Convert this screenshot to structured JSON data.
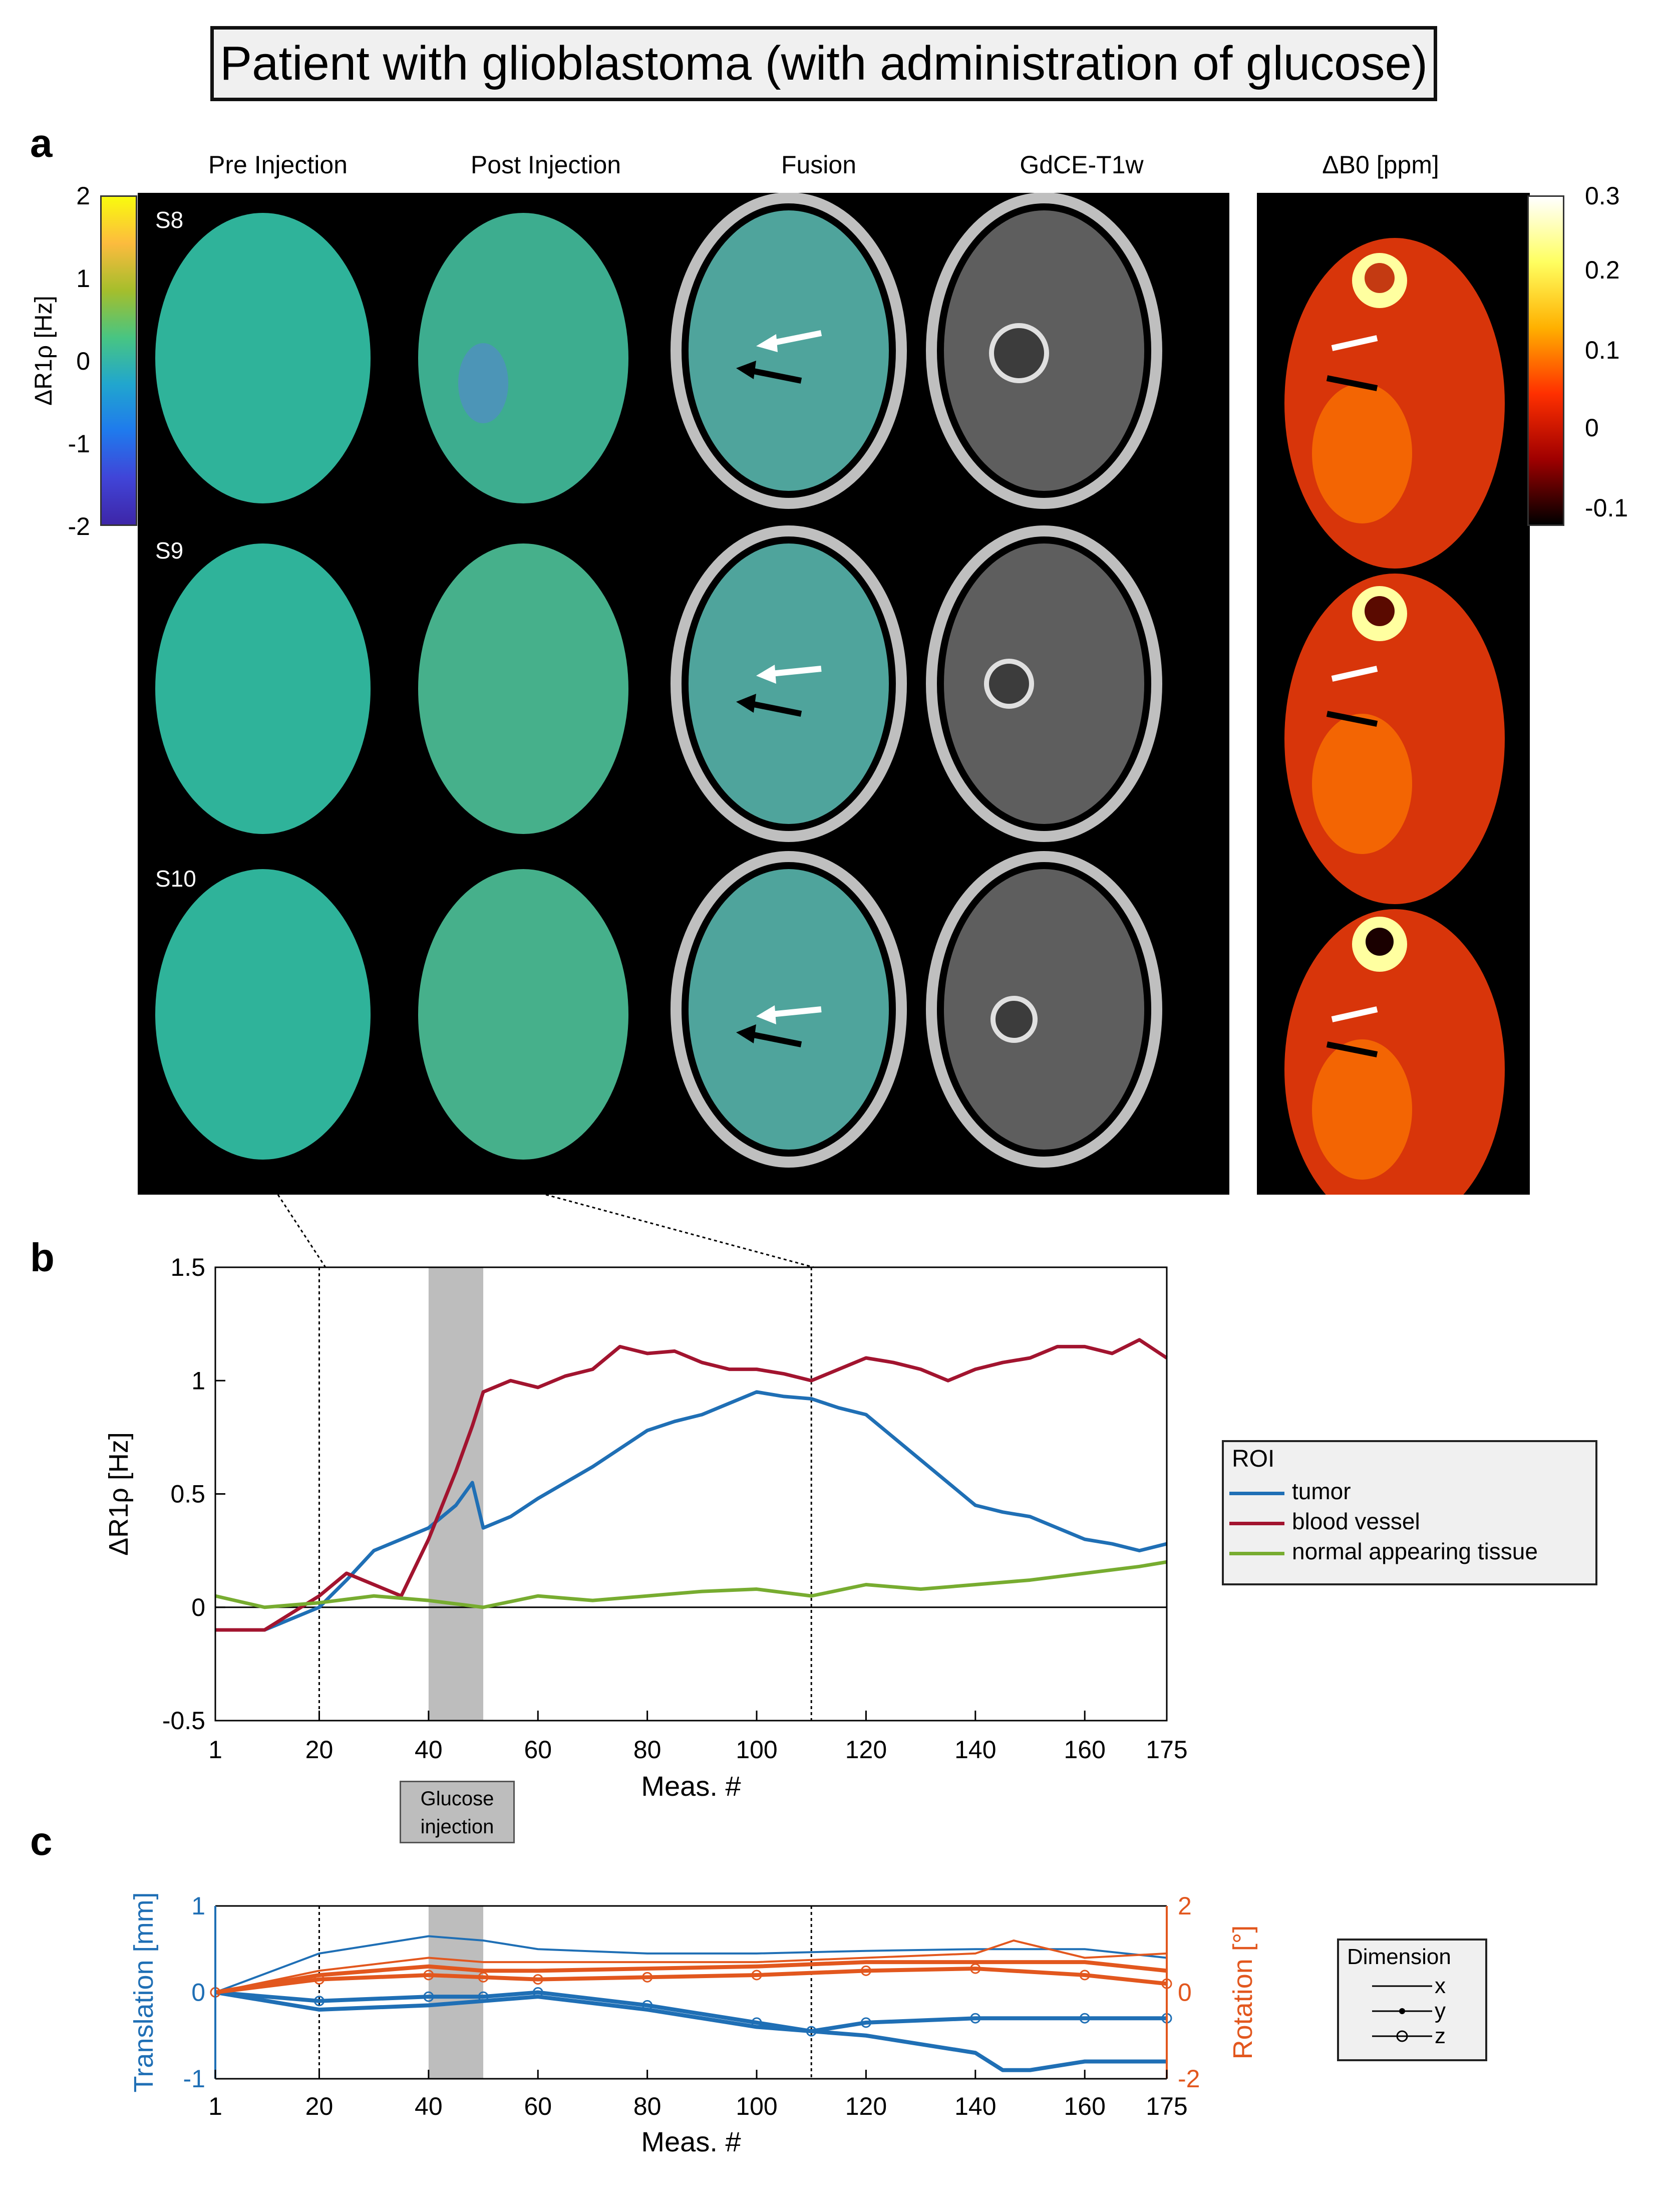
{
  "title": "Patient with glioblastoma (with administration of glucose)",
  "panels": {
    "a": "a",
    "b": "b",
    "c": "c"
  },
  "panel_a": {
    "columns": [
      "Pre Injection",
      "Post Injection",
      "Fusion",
      "GdCE-T1w"
    ],
    "db0_header": "ΔB0 [ppm]",
    "slices": [
      "S8",
      "S9",
      "S10"
    ],
    "colorbar_left": {
      "label": "ΔR1ρ [Hz]",
      "ticks": [
        "2",
        "1",
        "0",
        "-1",
        "-2"
      ]
    },
    "colorbar_right": {
      "ticks": [
        "0.3",
        "0.2",
        "0.1",
        "0",
        "-0.1"
      ]
    }
  },
  "colors": {
    "tumor": "#1f6fb5",
    "vessel": "#a2142f",
    "normal": "#77ac30",
    "rot": "#e2571e",
    "trans": "#1f6fb5"
  },
  "chart_data": [
    {
      "type": "line",
      "panel": "b",
      "xlabel": "Meas. #",
      "ylabel": "ΔR1ρ [Hz]",
      "xlim": [
        1,
        175
      ],
      "ylim": [
        -0.5,
        1.5
      ],
      "xticks": [
        1,
        20,
        40,
        60,
        80,
        100,
        120,
        140,
        160,
        175
      ],
      "yticks": [
        -0.5,
        0,
        0.5,
        1,
        1.5
      ],
      "injection_window": [
        40,
        50
      ],
      "markers": [
        20,
        110
      ],
      "legend_title": "ROI",
      "series": [
        {
          "name": "tumor",
          "x": [
            1,
            10,
            20,
            25,
            30,
            35,
            40,
            45,
            48,
            50,
            55,
            60,
            65,
            70,
            75,
            80,
            85,
            90,
            95,
            100,
            105,
            110,
            115,
            120,
            125,
            130,
            135,
            140,
            145,
            150,
            155,
            160,
            165,
            170,
            175
          ],
          "values": [
            -0.1,
            -0.1,
            0.0,
            0.12,
            0.25,
            0.3,
            0.35,
            0.45,
            0.55,
            0.35,
            0.4,
            0.48,
            0.55,
            0.62,
            0.7,
            0.78,
            0.82,
            0.85,
            0.9,
            0.95,
            0.93,
            0.92,
            0.88,
            0.85,
            0.75,
            0.65,
            0.55,
            0.45,
            0.42,
            0.4,
            0.35,
            0.3,
            0.28,
            0.25,
            0.28
          ]
        },
        {
          "name": "blood vessel",
          "x": [
            1,
            10,
            20,
            25,
            30,
            35,
            40,
            45,
            48,
            50,
            55,
            60,
            65,
            70,
            75,
            80,
            85,
            90,
            95,
            100,
            105,
            110,
            115,
            120,
            125,
            130,
            135,
            140,
            145,
            150,
            155,
            160,
            165,
            170,
            175
          ],
          "values": [
            -0.1,
            -0.1,
            0.05,
            0.15,
            0.1,
            0.05,
            0.3,
            0.6,
            0.8,
            0.95,
            1.0,
            0.97,
            1.02,
            1.05,
            1.15,
            1.12,
            1.13,
            1.08,
            1.05,
            1.05,
            1.03,
            1.0,
            1.05,
            1.1,
            1.08,
            1.05,
            1.0,
            1.05,
            1.08,
            1.1,
            1.15,
            1.15,
            1.12,
            1.18,
            1.1
          ]
        },
        {
          "name": "normal appearing tissue",
          "x": [
            1,
            10,
            20,
            30,
            40,
            50,
            60,
            70,
            80,
            90,
            100,
            110,
            120,
            130,
            140,
            150,
            160,
            170,
            175
          ],
          "values": [
            0.05,
            0.0,
            0.02,
            0.05,
            0.03,
            0.0,
            0.05,
            0.03,
            0.05,
            0.07,
            0.08,
            0.05,
            0.1,
            0.08,
            0.1,
            0.12,
            0.15,
            0.18,
            0.2
          ]
        }
      ]
    },
    {
      "type": "line",
      "panel": "c",
      "xlabel": "Meas. #",
      "ylabel_left": "Translation [mm]",
      "ylabel_right": "Rotation [°]",
      "xlim": [
        1,
        175
      ],
      "ylim_left": [
        -1,
        1
      ],
      "ylim_right": [
        -2,
        2
      ],
      "xticks": [
        1,
        20,
        40,
        60,
        80,
        100,
        120,
        140,
        160,
        175
      ],
      "yticks_left": [
        -1,
        0,
        1
      ],
      "yticks_right": [
        -2,
        0,
        2
      ],
      "injection_label": "Glucose injection",
      "legend_title": "Dimension",
      "legend_items": [
        "x",
        "y",
        "z"
      ],
      "series": [
        {
          "name": "trans-x",
          "x": [
            1,
            20,
            40,
            50,
            60,
            80,
            100,
            120,
            140,
            160,
            175
          ],
          "values": [
            0.0,
            0.45,
            0.65,
            0.6,
            0.5,
            0.45,
            0.45,
            0.48,
            0.5,
            0.5,
            0.4
          ]
        },
        {
          "name": "trans-y",
          "x": [
            1,
            20,
            40,
            50,
            60,
            80,
            100,
            120,
            140,
            145,
            150,
            160,
            175
          ],
          "values": [
            0.0,
            -0.2,
            -0.15,
            -0.1,
            -0.05,
            -0.2,
            -0.4,
            -0.5,
            -0.7,
            -0.9,
            -0.9,
            -0.8,
            -0.8
          ]
        },
        {
          "name": "trans-z",
          "x": [
            1,
            20,
            40,
            50,
            60,
            80,
            100,
            110,
            120,
            140,
            160,
            175
          ],
          "values": [
            0.0,
            -0.1,
            -0.05,
            -0.05,
            0.0,
            -0.15,
            -0.35,
            -0.45,
            -0.35,
            -0.3,
            -0.3,
            -0.3
          ]
        },
        {
          "name": "rot-x",
          "x": [
            1,
            20,
            40,
            50,
            60,
            80,
            100,
            120,
            140,
            147,
            160,
            175
          ],
          "values": [
            0.0,
            0.5,
            0.8,
            0.7,
            0.7,
            0.7,
            0.7,
            0.8,
            0.9,
            1.2,
            0.8,
            0.9
          ]
        },
        {
          "name": "rot-y",
          "x": [
            1,
            20,
            40,
            50,
            60,
            80,
            100,
            120,
            140,
            160,
            175
          ],
          "values": [
            0.0,
            0.4,
            0.6,
            0.5,
            0.5,
            0.55,
            0.6,
            0.7,
            0.7,
            0.7,
            0.5
          ]
        },
        {
          "name": "rot-z",
          "x": [
            1,
            20,
            40,
            50,
            60,
            80,
            100,
            120,
            140,
            160,
            175
          ],
          "values": [
            0.0,
            0.3,
            0.4,
            0.35,
            0.3,
            0.35,
            0.4,
            0.5,
            0.55,
            0.4,
            0.2
          ]
        }
      ]
    }
  ]
}
